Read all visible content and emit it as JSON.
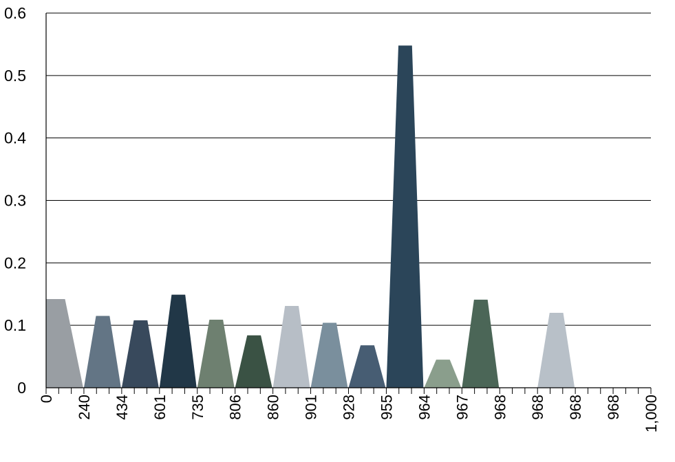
{
  "chart_data": {
    "type": "area",
    "title": "",
    "xlabel": "",
    "ylabel": "",
    "ylim": [
      0,
      0.6
    ],
    "y_ticks": [
      "0",
      "0.1",
      "0.2",
      "0.3",
      "0.4",
      "0.5",
      "0.6"
    ],
    "x_tick_labels": [
      "0",
      "240",
      "434",
      "601",
      "735",
      "806",
      "860",
      "901",
      "928",
      "955",
      "964",
      "967",
      "968",
      "968",
      "968",
      "968",
      "1,000"
    ],
    "grid": true,
    "legend": "none",
    "series": [
      {
        "x_start": 0,
        "x_end": 240,
        "value": 0.142,
        "color": "#999EA3"
      },
      {
        "x_start": 240,
        "x_end": 434,
        "value": 0.115,
        "color": "#637585"
      },
      {
        "x_start": 434,
        "x_end": 601,
        "value": 0.108,
        "color": "#38495C"
      },
      {
        "x_start": 601,
        "x_end": 735,
        "value": 0.149,
        "color": "#213747"
      },
      {
        "x_start": 735,
        "x_end": 806,
        "value": 0.109,
        "color": "#6E8070"
      },
      {
        "x_start": 806,
        "x_end": 860,
        "value": 0.084,
        "color": "#3A5244"
      },
      {
        "x_start": 860,
        "x_end": 901,
        "value": 0.131,
        "color": "#B7BEC6"
      },
      {
        "x_start": 901,
        "x_end": 928,
        "value": 0.104,
        "color": "#7A8F9D"
      },
      {
        "x_start": 928,
        "x_end": 955,
        "value": 0.068,
        "color": "#475D73"
      },
      {
        "x_start": 955,
        "x_end": 964,
        "value": 0.548,
        "color": "#2B4559"
      },
      {
        "x_start": 964,
        "x_end": 967,
        "value": 0.045,
        "color": "#8A9E8C"
      },
      {
        "x_start": 967,
        "x_end": 968,
        "value": 0.141,
        "color": "#4B6657"
      },
      {
        "x_start": 968,
        "x_end": 968,
        "value": 0.0,
        "color": "#9AA5AF"
      },
      {
        "x_start": 968,
        "x_end": 968,
        "value": 0.12,
        "color": "#B8C0C8"
      },
      {
        "x_start": 968,
        "x_end": 968,
        "value": 0.0,
        "color": "#9AA5AF"
      },
      {
        "x_start": 968,
        "x_end": 1000,
        "value": 0.0,
        "color": "#9AA5AF"
      }
    ]
  }
}
